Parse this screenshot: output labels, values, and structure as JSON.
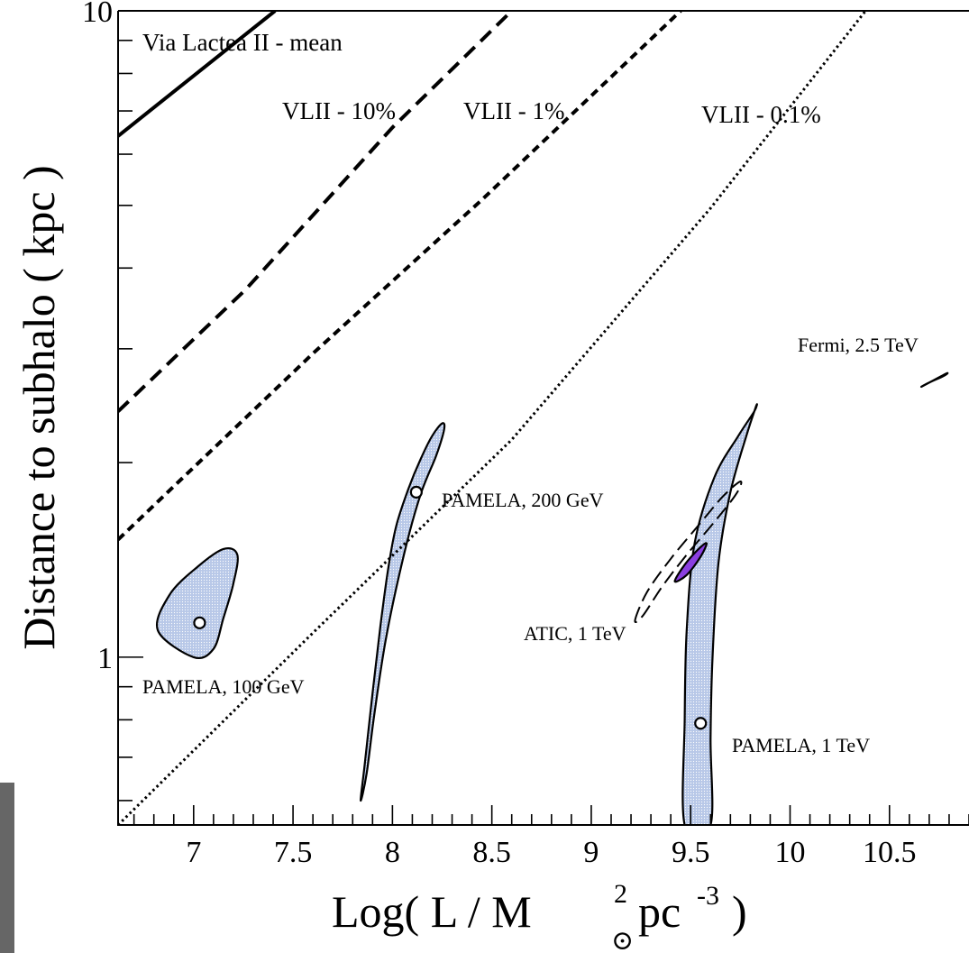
{
  "chart_data": {
    "type": "scatter",
    "xlabel": {
      "main": "Log(  L  /  M",
      "sup": "2",
      "sub": "⊙",
      "unit": "pc",
      "unit_sup": "-3",
      "close": " )"
    },
    "ylabel": "Distance to subhalo  ( kpc )",
    "xlim": [
      6.62,
      10.9
    ],
    "ylim": [
      0.55,
      10
    ],
    "y_scale": "log",
    "x_ticks": [
      "7",
      "7.5",
      "8",
      "8.5",
      "9",
      "9.5",
      "10",
      "10.5"
    ],
    "y_ticks": [
      "1",
      "10"
    ],
    "lines": [
      {
        "name": "Via Lactea II - mean",
        "style": "solid",
        "x": [
          6.62,
          7.41
        ],
        "y": [
          6.4,
          10
        ]
      },
      {
        "name": "VLII - 10%",
        "style": "dashed",
        "x": [
          6.62,
          7.26,
          8.0,
          8.6
        ],
        "y": [
          2.4,
          3.7,
          6.6,
          10
        ]
      },
      {
        "name": "VLII - 1%",
        "style": "dashed-short",
        "x": [
          6.62,
          7.6,
          8.45,
          9.45
        ],
        "y": [
          1.52,
          2.95,
          5.1,
          10
        ]
      },
      {
        "name": "VLII - 0.1%",
        "style": "dotted",
        "x": [
          6.62,
          7.6,
          8.6,
          9.6,
          10.38
        ],
        "y": [
          0.55,
          1.09,
          2.17,
          4.95,
          10
        ]
      }
    ],
    "points": [
      {
        "label": "PAMELA, 100 GeV",
        "x": 7.03,
        "y": 1.13
      },
      {
        "label": "PAMELA, 200 GeV",
        "x": 8.12,
        "y": 1.8
      },
      {
        "label": "PAMELA, 1 TeV",
        "x": 9.55,
        "y": 0.79
      }
    ],
    "annotations": [
      {
        "text": "Via Lactea II - mean"
      },
      {
        "text": "VLII - 10%"
      },
      {
        "text": "VLII - 1%"
      },
      {
        "text": "VLII - 0.1%"
      },
      {
        "text": "PAMELA, 100 GeV"
      },
      {
        "text": "PAMELA, 200 GeV"
      },
      {
        "text": "PAMELA, 1 TeV"
      },
      {
        "text": "ATIC, 1 TeV"
      },
      {
        "text": "Fermi, 2.5 TeV"
      }
    ],
    "regions": [
      {
        "name": "PAMELA, 100 GeV",
        "color": "#b8c8e8",
        "outline": [
          [
            7.0,
            1.0
          ],
          [
            6.82,
            1.1
          ],
          [
            6.88,
            1.25
          ],
          [
            7.02,
            1.38
          ],
          [
            7.15,
            1.47
          ],
          [
            7.22,
            1.44
          ],
          [
            7.2,
            1.3
          ],
          [
            7.15,
            1.15
          ],
          [
            7.1,
            1.03
          ]
        ]
      },
      {
        "name": "PAMELA, 200 GeV",
        "color": "#b8c8e8",
        "outline": [
          [
            7.84,
            0.6
          ],
          [
            7.86,
            0.68
          ],
          [
            7.9,
            0.88
          ],
          [
            7.94,
            1.12
          ],
          [
            7.98,
            1.38
          ],
          [
            8.02,
            1.6
          ],
          [
            8.08,
            1.82
          ],
          [
            8.14,
            2.02
          ],
          [
            8.2,
            2.2
          ],
          [
            8.25,
            2.3
          ],
          [
            8.26,
            2.25
          ],
          [
            8.22,
            2.05
          ],
          [
            8.14,
            1.78
          ],
          [
            8.06,
            1.45
          ],
          [
            7.97,
            1.08
          ],
          [
            7.91,
            0.82
          ],
          [
            7.87,
            0.66
          ]
        ]
      },
      {
        "name": "PAMELA, 1 TeV",
        "color": "#b8c8e8",
        "outline": [
          [
            9.47,
            0.55
          ],
          [
            9.6,
            0.55
          ],
          [
            9.6,
            0.75
          ],
          [
            9.61,
            1.0
          ],
          [
            9.64,
            1.4
          ],
          [
            9.7,
            1.8
          ],
          [
            9.78,
            2.2
          ],
          [
            9.83,
            2.45
          ],
          [
            9.82,
            2.4
          ],
          [
            9.74,
            2.2
          ],
          [
            9.62,
            1.9
          ],
          [
            9.52,
            1.5
          ],
          [
            9.48,
            1.1
          ],
          [
            9.47,
            0.8
          ]
        ]
      },
      {
        "name": "ATIC, 1 TeV",
        "color": "#8b3fe0",
        "outline": [
          [
            9.42,
            1.31
          ],
          [
            9.47,
            1.39
          ],
          [
            9.54,
            1.47
          ],
          [
            9.58,
            1.5
          ],
          [
            9.55,
            1.43
          ],
          [
            9.48,
            1.34
          ]
        ]
      },
      {
        "name": "Fermi, 2.5 TeV",
        "color": "#000000",
        "outline": [
          [
            10.66,
            2.62
          ],
          [
            10.72,
            2.68
          ],
          [
            10.79,
            2.75
          ],
          [
            10.77,
            2.72
          ],
          [
            10.7,
            2.66
          ]
        ]
      }
    ],
    "atic_dashed_ellipse": [
      [
        9.22,
        1.14
      ],
      [
        9.28,
        1.26
      ],
      [
        9.4,
        1.42
      ],
      [
        9.54,
        1.6
      ],
      [
        9.66,
        1.77
      ],
      [
        9.75,
        1.87
      ],
      [
        9.73,
        1.79
      ],
      [
        9.62,
        1.62
      ],
      [
        9.48,
        1.44
      ],
      [
        9.36,
        1.29
      ],
      [
        9.26,
        1.16
      ]
    ],
    "grid": false,
    "legend": "none"
  }
}
